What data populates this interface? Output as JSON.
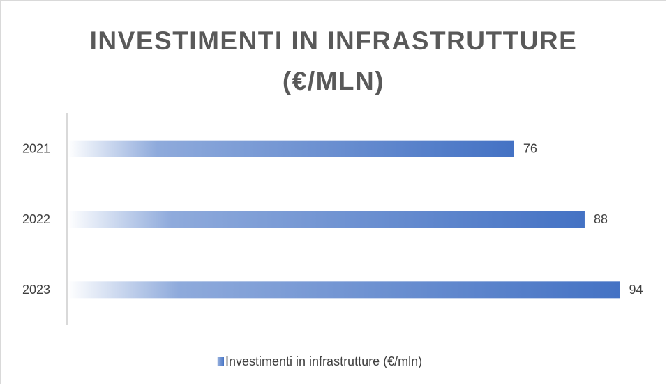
{
  "chart_data": {
    "type": "barh",
    "title": "INVESTIMENTI IN INFRASTRUTTURE (€/MLN)",
    "categories": [
      "2021",
      "2022",
      "2023"
    ],
    "series": [
      {
        "name": "Investimenti in infrastrutture (€/mln)",
        "color": "#4472c4",
        "values": [
          76,
          88,
          94
        ]
      }
    ],
    "xlim": [
      0,
      100
    ],
    "legend": "bottom"
  }
}
